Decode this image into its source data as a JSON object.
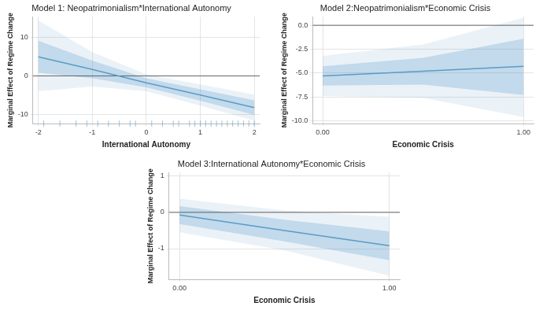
{
  "chart_data": [
    {
      "type": "line",
      "title": "Model 1: Neopatrimonialism*International Autonomy",
      "x_label": "International Autonomy",
      "y_label": "Marginal Effect of Regime Change",
      "x": [
        -2,
        -1,
        0,
        1,
        2
      ],
      "values": [
        5.0,
        1.7,
        -1.8,
        -5.0,
        -8.3
      ],
      "ci_inner_lower": [
        0.8,
        -0.6,
        -3.0,
        -6.5,
        -10.2
      ],
      "ci_inner_upper": [
        9.2,
        4.0,
        -0.6,
        -3.5,
        -6.4
      ],
      "ci_outer_lower": [
        -4.0,
        -2.8,
        -4.0,
        -7.8,
        -11.7
      ],
      "ci_outer_upper": [
        14.5,
        6.2,
        0.4,
        -2.2,
        -4.9
      ],
      "reference_line": 0,
      "rug_x": [
        -1.9,
        -1.6,
        -1.3,
        -1.1,
        -0.9,
        -0.7,
        -0.5,
        -0.3,
        -0.2,
        0.1,
        0.3,
        0.5,
        0.6,
        0.8,
        0.9,
        1.0,
        1.1,
        1.2,
        1.3,
        1.4,
        1.5,
        1.6,
        1.7,
        1.8,
        1.9,
        2.0
      ],
      "xlim": [
        -2.1,
        2.1
      ],
      "ylim": [
        -12.5,
        15.5
      ],
      "xticks": [
        -2,
        -1,
        0,
        1,
        2
      ],
      "yticks": [
        -10,
        0,
        10
      ],
      "color": "#5b9bc8",
      "grid": true
    },
    {
      "type": "line",
      "title": "Model 2:Neopatrimonialism*Economic Crisis",
      "x_label": "Economic Crisis",
      "y_label": "Marginal Effect of Regime Change",
      "x": [
        0,
        0.5,
        1
      ],
      "values": [
        -5.3,
        -4.8,
        -4.3
      ],
      "ci_inner_lower": [
        -6.3,
        -6.2,
        -7.3
      ],
      "ci_inner_upper": [
        -4.3,
        -3.4,
        -1.4
      ],
      "ci_outer_lower": [
        -7.4,
        -7.6,
        -9.6
      ],
      "ci_outer_upper": [
        -3.2,
        -2.0,
        0.8
      ],
      "reference_line": 0,
      "xlim": [
        -0.05,
        1.05
      ],
      "ylim": [
        -10.3,
        0.9
      ],
      "xticks": [
        {
          "value": 0,
          "label": "0.00"
        },
        {
          "value": 1,
          "label": "1.00"
        }
      ],
      "yticks": [
        {
          "value": 0,
          "label": "0.0"
        },
        {
          "value": -2.5,
          "label": "-2.5"
        },
        {
          "value": -5,
          "label": "-5.0"
        },
        {
          "value": -7.5,
          "label": "-7.5"
        },
        {
          "value": -10,
          "label": "-10.0"
        }
      ],
      "color": "#5b9bc8",
      "grid": true
    },
    {
      "type": "line",
      "title": "Model 3:International Autonomy*Economic Crisis",
      "x_label": "Economic Crisis",
      "y_label": "Marginal Effect of Regime Change",
      "x": [
        0,
        0.5,
        1
      ],
      "values": [
        -0.07,
        -0.5,
        -0.92
      ],
      "ci_inner_lower": [
        -0.32,
        -0.8,
        -1.32
      ],
      "ci_inner_upper": [
        0.17,
        -0.2,
        -0.52
      ],
      "ci_outer_lower": [
        -0.55,
        -1.05,
        -1.75
      ],
      "ci_outer_upper": [
        0.38,
        0.05,
        -0.12
      ],
      "reference_line": 0,
      "xlim": [
        -0.05,
        1.05
      ],
      "ylim": [
        -1.85,
        1.1
      ],
      "xticks": [
        {
          "value": 0,
          "label": "0.00"
        },
        {
          "value": 1,
          "label": "1.00"
        }
      ],
      "yticks": [
        -1,
        0,
        1
      ],
      "color": "#5b9bc8",
      "grid": true
    }
  ]
}
